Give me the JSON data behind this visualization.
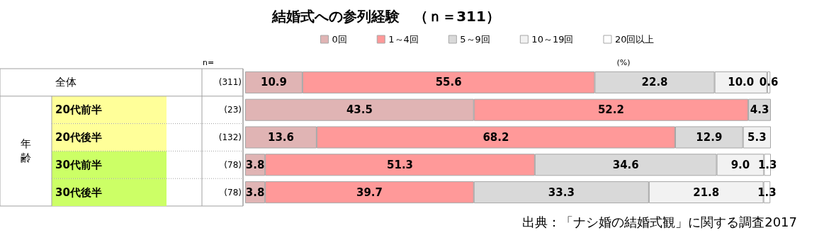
{
  "chart_data": {
    "type": "bar",
    "orientation": "horizontal",
    "stacked": true,
    "title": "結婚式への参列経験　（ｎ＝311）",
    "xlabel": "(%)",
    "categories": [
      "全体",
      "20代前半",
      "20代後半",
      "30代前半",
      "30代後半"
    ],
    "series": [
      {
        "name": "0回",
        "color": "#e0b4b4",
        "values": [
          10.9,
          43.5,
          13.6,
          3.8,
          3.8
        ],
        "value_labels": [
          "10.9",
          "43.5",
          "13.6",
          "3.8",
          "3.8"
        ]
      },
      {
        "name": "1～4回",
        "color": "#ff9999",
        "values": [
          55.6,
          52.2,
          68.2,
          51.3,
          39.7
        ],
        "value_labels": [
          "55.6",
          "52.2",
          "68.2",
          "51.3",
          "39.7"
        ]
      },
      {
        "name": "5～9回",
        "color": "#d9d9d9",
        "values": [
          22.8,
          4.3,
          12.9,
          34.6,
          33.3
        ],
        "value_labels": [
          "22.8",
          "4.3",
          "12.9",
          "34.6",
          "33.3"
        ]
      },
      {
        "name": "10～19回",
        "color": "#f2f2f2",
        "values": [
          10.0,
          null,
          5.3,
          9.0,
          21.8
        ],
        "value_labels": [
          "10.0",
          null,
          "5.3",
          "9.0",
          "21.8"
        ]
      },
      {
        "name": "20回以上",
        "color": "#ffffff",
        "values": [
          0.6,
          null,
          null,
          1.3,
          1.3
        ],
        "value_labels": [
          "0.6",
          null,
          null,
          "1.3",
          "1.3"
        ]
      }
    ],
    "xlim": [
      0,
      100
    ],
    "legend": "top",
    "grid": false,
    "tick_labels": "y",
    "annotations": [
      "n=",
      "(311)",
      "(23)",
      "(132)",
      "(78)",
      "(78)",
      "年齢",
      "出典：「ナシ婚の結婚式観」に関する調査2017"
    ]
  }
}
